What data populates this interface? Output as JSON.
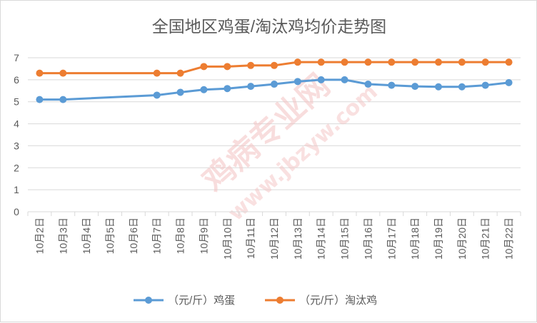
{
  "colors": {
    "eggs": "#5b9bd5",
    "hens": "#ed7d31",
    "grid": "#d9d9d9",
    "text": "#595959",
    "watermark": "#f4c3c3"
  },
  "watermark": {
    "logo_text": "鸡病专业网",
    "url_text": "www.jbzyw.com"
  },
  "chart_data": {
    "type": "line",
    "title": "全国地区鸡蛋/淘汰鸡均价走势图",
    "xlabel": "",
    "ylabel": "",
    "ylim": [
      0,
      7
    ],
    "yticks": [
      "0",
      "1",
      "2",
      "3",
      "4",
      "5",
      "6",
      "7"
    ],
    "grid": true,
    "legend_position": "bottom",
    "categories": [
      "10月2日",
      "10月3日",
      "10月4日",
      "10月5日",
      "10月6日",
      "10月7日",
      "10月8日",
      "10月9日",
      "10月10日",
      "10月11日",
      "10月12日",
      "10月13日",
      "10月14日",
      "10月15日",
      "10月16日",
      "10月17日",
      "10月18日",
      "10月19日",
      "10月20日",
      "10月21日",
      "10月22日"
    ],
    "series": [
      {
        "name": "（元/斤）鸡蛋",
        "values": [
          5.1,
          5.1,
          null,
          null,
          null,
          5.3,
          5.43,
          5.55,
          5.6,
          5.7,
          5.8,
          5.92,
          6.0,
          6.0,
          5.8,
          5.75,
          5.7,
          5.68,
          5.68,
          5.75,
          5.87
        ]
      },
      {
        "name": "（元/斤）淘汰鸡",
        "values": [
          6.3,
          6.3,
          null,
          null,
          null,
          6.3,
          6.3,
          6.6,
          6.6,
          6.65,
          6.65,
          6.8,
          6.8,
          6.8,
          6.8,
          6.8,
          6.8,
          6.8,
          6.8,
          6.8,
          6.8
        ]
      }
    ]
  }
}
